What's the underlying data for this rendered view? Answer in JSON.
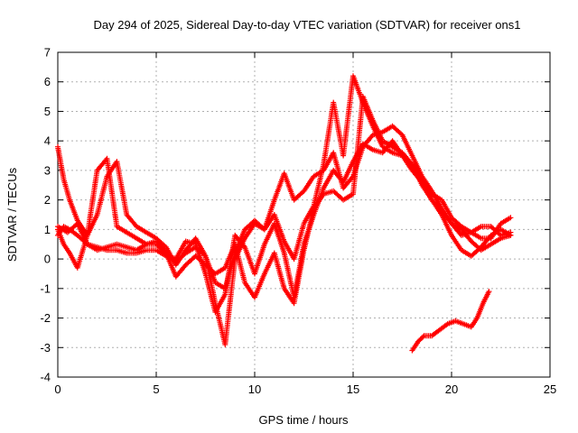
{
  "chart_data": {
    "type": "scatter",
    "title": "Day 294 of 2025, Sidereal Day-to-day VTEC variation (SDTVAR) for receiver ons1",
    "xlabel": "GPS time / hours",
    "ylabel": "SDTVAR / TECUs",
    "xlim": [
      0,
      25
    ],
    "ylim": [
      -4,
      7
    ],
    "xticks": [
      "0",
      "5",
      "10",
      "15",
      "20",
      "25"
    ],
    "yticks": [
      "-4",
      "-3",
      "-2",
      "-1",
      "0",
      "1",
      "2",
      "3",
      "4",
      "5",
      "6",
      "7"
    ],
    "grid": true,
    "marker": "+",
    "color": "#ff0000",
    "series": [
      {
        "name": "track-a",
        "x": [
          0.0,
          0.3,
          0.6,
          1.0,
          1.5,
          2.0,
          2.5,
          3.0,
          3.5,
          4.0,
          4.5,
          5.0,
          5.5,
          6.0,
          6.5,
          7.0,
          7.5,
          8.0,
          8.5,
          9.0,
          9.5,
          10.0,
          10.5,
          11.0,
          11.5,
          12.0,
          12.5,
          13.0,
          13.5,
          14.0,
          14.5,
          15.0,
          15.5,
          16.0,
          16.5,
          17.0,
          17.5,
          18.0,
          18.5,
          19.0,
          19.5,
          20.0,
          20.5,
          21.0,
          21.5,
          22.0,
          22.5,
          23.0
        ],
        "y": [
          0.8,
          1.1,
          1.0,
          0.8,
          0.5,
          0.4,
          0.3,
          0.3,
          0.2,
          0.2,
          0.3,
          0.3,
          0.1,
          0.0,
          0.6,
          0.5,
          -0.5,
          -1.8,
          -1.2,
          0.8,
          0.4,
          -0.5,
          0.5,
          1.2,
          0.2,
          -1.3,
          0.5,
          1.5,
          2.4,
          3.0,
          2.6,
          3.3,
          3.9,
          3.7,
          3.6,
          4.0,
          3.5,
          3.2,
          2.6,
          2.0,
          1.5,
          0.8,
          0.3,
          0.1,
          0.4,
          0.8,
          1.0,
          0.8
        ]
      },
      {
        "name": "track-b",
        "x": [
          0.0,
          0.3,
          0.6,
          1.0,
          1.5,
          2.0,
          2.5,
          3.0,
          3.5,
          4.0,
          4.5,
          5.0,
          5.5,
          6.0,
          6.5,
          7.0,
          7.5,
          8.0,
          8.5,
          9.0,
          9.5,
          10.0,
          10.5,
          11.0,
          11.5,
          12.0,
          12.5,
          13.0,
          13.5,
          14.0,
          14.5,
          15.0,
          15.5,
          16.0,
          16.5,
          17.0,
          17.5,
          18.0,
          18.5,
          19.0,
          19.5,
          20.0,
          20.5,
          21.0,
          21.5,
          22.0,
          22.5,
          23.0
        ],
        "y": [
          3.8,
          2.7,
          2.0,
          1.3,
          0.8,
          1.5,
          2.8,
          3.3,
          1.5,
          1.1,
          0.9,
          0.7,
          0.4,
          -0.2,
          0.3,
          0.7,
          0.1,
          -0.8,
          -1.0,
          0.2,
          1.0,
          1.3,
          1.0,
          2.0,
          2.9,
          2.0,
          2.3,
          2.8,
          3.0,
          3.6,
          2.4,
          2.8,
          3.8,
          4.2,
          4.3,
          4.5,
          4.2,
          3.5,
          2.8,
          2.3,
          1.7,
          1.2,
          0.8,
          0.9,
          1.1,
          1.1,
          0.8,
          0.9
        ]
      },
      {
        "name": "track-c",
        "x": [
          0.0,
          0.3,
          0.6,
          1.0,
          1.5,
          2.0,
          2.5,
          3.0,
          3.5,
          4.0,
          4.5,
          5.0,
          5.5,
          6.0,
          6.5,
          7.0,
          7.5,
          8.0,
          8.5,
          9.0,
          9.5,
          10.0,
          10.5,
          11.0,
          11.5,
          12.0,
          12.5,
          13.0,
          13.5,
          14.0,
          14.5,
          15.0,
          15.5,
          16.0,
          16.5,
          17.0,
          17.5,
          18.0,
          18.5,
          19.0,
          19.5,
          20.0,
          20.5,
          21.0,
          21.5,
          22.0,
          22.5,
          23.0
        ],
        "y": [
          1.0,
          0.5,
          0.2,
          -0.3,
          0.8,
          3.0,
          3.4,
          1.1,
          0.9,
          0.7,
          0.5,
          0.5,
          0.2,
          -0.6,
          -0.2,
          0.1,
          -0.2,
          -0.5,
          -0.3,
          0.5,
          -0.8,
          -1.3,
          -0.5,
          0.2,
          -1.0,
          -1.5,
          0.3,
          1.7,
          2.2,
          2.3,
          2.0,
          2.2,
          5.5,
          4.7,
          4.0,
          3.8,
          3.6,
          3.2,
          2.5,
          2.0,
          1.6,
          1.2,
          1.0,
          0.6,
          0.3,
          0.5,
          0.7,
          0.8
        ]
      },
      {
        "name": "track-d",
        "x": [
          0.0,
          0.5,
          1.0,
          1.5,
          2.0,
          2.5,
          3.0,
          3.5,
          4.0,
          4.5,
          5.0,
          5.5,
          6.0,
          6.5,
          7.0,
          7.5,
          8.0,
          8.5,
          9.0,
          9.5,
          10.0,
          10.5,
          11.0,
          11.5,
          12.0,
          12.5,
          13.0,
          13.5,
          14.0,
          14.5,
          15.0,
          15.5,
          16.0,
          16.5,
          17.0,
          17.5,
          18.0,
          18.5,
          19.0,
          19.5,
          20.0,
          20.5,
          21.0,
          21.5,
          22.0,
          22.5,
          23.0
        ],
        "y": [
          1.1,
          0.9,
          1.2,
          0.5,
          0.3,
          0.4,
          0.5,
          0.4,
          0.3,
          0.5,
          0.6,
          0.2,
          -0.1,
          0.2,
          0.4,
          0.1,
          -1.5,
          -2.9,
          0.0,
          0.7,
          1.2,
          1.0,
          1.5,
          0.6,
          0.0,
          1.2,
          1.8,
          3.2,
          5.3,
          3.5,
          6.2,
          5.3,
          4.5,
          3.8,
          3.6,
          3.5,
          3.0,
          2.6,
          2.2,
          2.0,
          1.4,
          1.1,
          0.9,
          0.7,
          0.7,
          1.2,
          1.4
        ]
      },
      {
        "name": "track-e",
        "x": [
          18.0,
          18.3,
          18.6,
          19.0,
          19.4,
          19.8,
          20.2,
          20.6,
          21.0,
          21.3,
          21.6,
          21.9
        ],
        "y": [
          -3.1,
          -2.8,
          -2.6,
          -2.6,
          -2.4,
          -2.2,
          -2.1,
          -2.2,
          -2.3,
          -2.0,
          -1.5,
          -1.1
        ]
      }
    ]
  }
}
